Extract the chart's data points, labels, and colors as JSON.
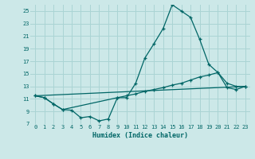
{
  "xlabel": "Humidex (Indice chaleur)",
  "bg_color": "#cce8e8",
  "grid_color": "#aad4d4",
  "line_color": "#006666",
  "xlim": [
    -0.5,
    23.5
  ],
  "ylim": [
    7,
    26
  ],
  "yticks": [
    7,
    9,
    11,
    13,
    15,
    17,
    19,
    21,
    23,
    25
  ],
  "xticks": [
    0,
    1,
    2,
    3,
    4,
    5,
    6,
    7,
    8,
    9,
    10,
    11,
    12,
    13,
    14,
    15,
    16,
    17,
    18,
    19,
    20,
    21,
    22,
    23
  ],
  "line1_x": [
    0,
    1,
    2,
    3,
    4,
    5,
    6,
    7,
    8,
    9,
    10,
    11,
    12,
    13,
    14,
    15,
    16,
    17,
    18,
    19,
    20,
    21,
    22,
    23
  ],
  "line1_y": [
    11.5,
    11.2,
    10.2,
    9.3,
    9.2,
    8.0,
    8.2,
    7.5,
    7.8,
    11.2,
    11.2,
    13.5,
    17.5,
    19.8,
    22.2,
    26.0,
    25.0,
    24.0,
    20.5,
    16.5,
    15.2,
    13.5,
    13.0,
    13.0
  ],
  "line2_x": [
    0,
    1,
    2,
    3,
    9,
    10,
    11,
    12,
    13,
    14,
    15,
    16,
    17,
    18,
    19,
    20,
    21,
    22,
    23
  ],
  "line2_y": [
    11.5,
    11.2,
    10.2,
    9.3,
    11.2,
    11.5,
    11.8,
    12.2,
    12.5,
    12.8,
    13.2,
    13.5,
    14.0,
    14.5,
    14.8,
    15.2,
    12.8,
    12.5,
    13.0
  ],
  "line3_x": [
    0,
    23
  ],
  "line3_y": [
    11.5,
    13.0
  ]
}
